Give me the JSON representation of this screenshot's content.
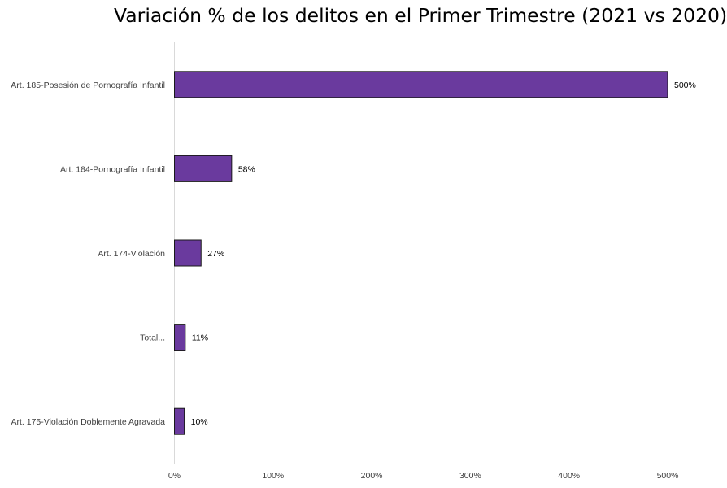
{
  "chart_data": {
    "type": "bar",
    "orientation": "horizontal",
    "title": "Variación % de los delitos en el Primer Trimestre (2021 vs 2020)",
    "categories": [
      "Art. 185-Posesión de Pornografía Infantil",
      "Art. 184-Pornografía Infantil",
      "Art. 174-Violación",
      "Total...",
      "Art. 175-Violación Doblemente Agravada"
    ],
    "values": [
      500,
      58,
      27,
      11,
      10
    ],
    "value_labels": [
      "500%",
      "58%",
      "27%",
      "11%",
      "10%"
    ],
    "xlim": [
      0,
      500
    ],
    "x_ticks": [
      0,
      100,
      200,
      300,
      400,
      500
    ],
    "x_tick_labels": [
      "0%",
      "100%",
      "200%",
      "300%",
      "400%",
      "500%"
    ],
    "bar_color": "#6A3A9E",
    "bar_edge_color": "#1a1a1a",
    "grid": false,
    "legend": "none"
  }
}
